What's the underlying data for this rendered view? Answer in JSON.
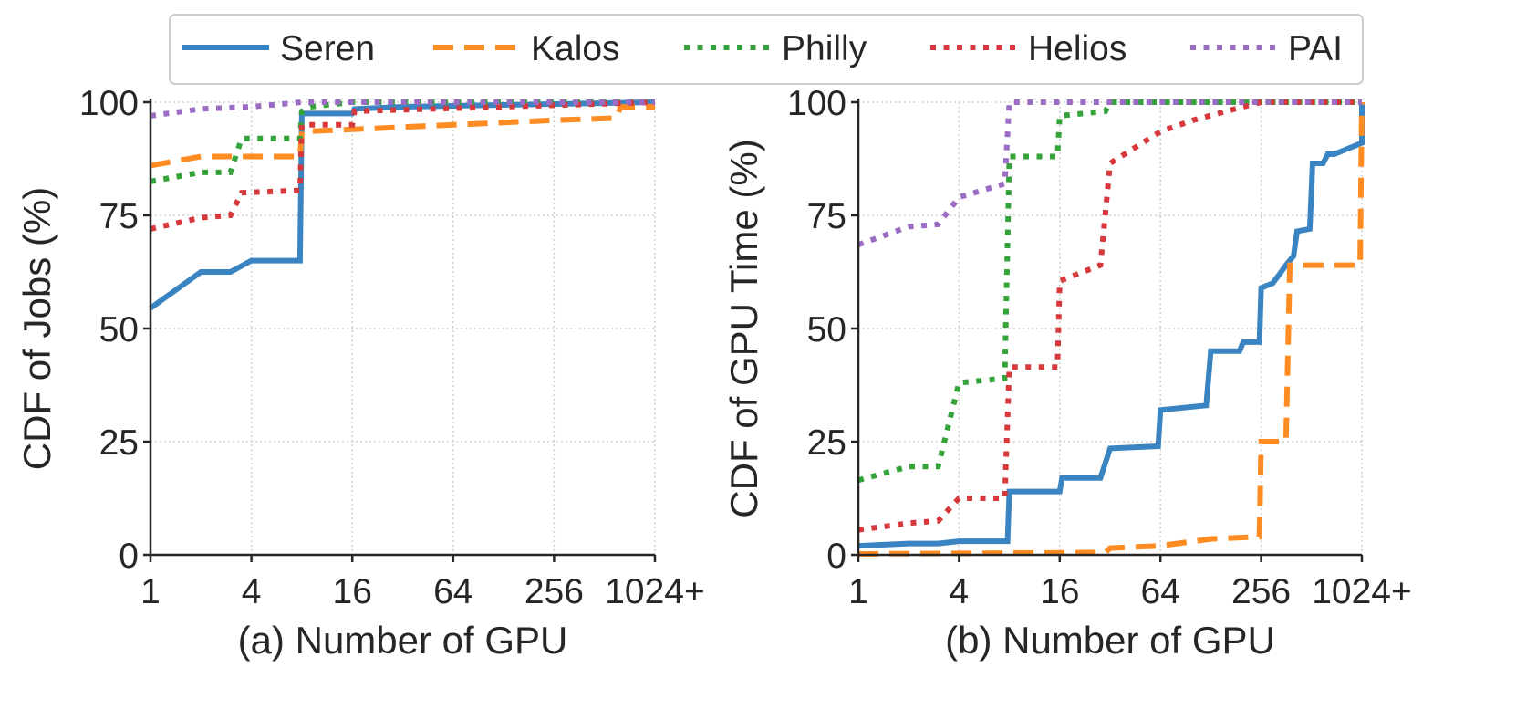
{
  "legend": {
    "placement": "top-center",
    "entries": [
      {
        "label": "Seren",
        "color": "#3a85c1",
        "dash": "solid"
      },
      {
        "label": "Kalos",
        "color": "#ff8c22",
        "dash": "dashed"
      },
      {
        "label": "Philly",
        "color": "#34a33a",
        "dash": "dotted"
      },
      {
        "label": "Helios",
        "color": "#d6383b",
        "dash": "dotted"
      },
      {
        "label": "PAI",
        "color": "#9a6cc4",
        "dash": "dotted"
      }
    ]
  },
  "chart_data": [
    {
      "type": "line",
      "xlabel": "(a) Number of GPU",
      "ylabel": "CDF of Jobs (%)",
      "x_scale": "log2",
      "x_ticks": [
        1,
        4,
        16,
        64,
        256,
        1024
      ],
      "x_tick_labels": [
        "1",
        "4",
        "16",
        "64",
        "256",
        "1024+"
      ],
      "xlim": [
        1,
        1024
      ],
      "y_ticks": [
        0,
        25,
        50,
        75,
        100
      ],
      "ylim": [
        0,
        100
      ],
      "grid": true,
      "series": [
        {
          "name": "Seren",
          "points": [
            [
              1,
              54.5
            ],
            [
              2,
              62.5
            ],
            [
              3,
              62.5
            ],
            [
              4,
              65
            ],
            [
              7.8,
              65
            ],
            [
              8,
              97.5
            ],
            [
              16,
              97.5
            ],
            [
              16.5,
              98.5
            ],
            [
              32,
              99
            ],
            [
              1024,
              100
            ]
          ]
        },
        {
          "name": "Kalos",
          "points": [
            [
              1,
              86
            ],
            [
              2,
              88
            ],
            [
              3,
              88
            ],
            [
              7.8,
              88
            ],
            [
              8,
              93.5
            ],
            [
              16,
              94
            ],
            [
              64,
              95
            ],
            [
              256,
              96
            ],
            [
              600,
              96.5
            ],
            [
              640,
              99
            ],
            [
              1024,
              99
            ]
          ]
        },
        {
          "name": "Philly",
          "points": [
            [
              1,
              82.5
            ],
            [
              2,
              84.5
            ],
            [
              3,
              84.5
            ],
            [
              3.5,
              92
            ],
            [
              7.8,
              92
            ],
            [
              8,
              98
            ],
            [
              9,
              99
            ],
            [
              16,
              100
            ],
            [
              1024,
              100
            ]
          ]
        },
        {
          "name": "Helios",
          "points": [
            [
              1,
              72
            ],
            [
              2,
              74.5
            ],
            [
              3,
              75
            ],
            [
              3.5,
              80
            ],
            [
              7.8,
              80.5
            ],
            [
              8,
              95
            ],
            [
              16,
              95
            ],
            [
              16.5,
              98
            ],
            [
              1024,
              100
            ]
          ]
        },
        {
          "name": "PAI",
          "points": [
            [
              1,
              97
            ],
            [
              2,
              98.5
            ],
            [
              4,
              99
            ],
            [
              8,
              100
            ],
            [
              1024,
              100
            ]
          ]
        }
      ]
    },
    {
      "type": "line",
      "xlabel": "(b) Number of GPU",
      "ylabel": "CDF of GPU Time (%)",
      "x_scale": "log2",
      "x_ticks": [
        1,
        4,
        16,
        64,
        256,
        1024
      ],
      "x_tick_labels": [
        "1",
        "4",
        "16",
        "64",
        "256",
        "1024+"
      ],
      "xlim": [
        1,
        1024
      ],
      "y_ticks": [
        0,
        25,
        50,
        75,
        100
      ],
      "ylim": [
        0,
        100
      ],
      "grid": true,
      "series": [
        {
          "name": "Seren",
          "points": [
            [
              1,
              2
            ],
            [
              2,
              2.5
            ],
            [
              3,
              2.5
            ],
            [
              4,
              3
            ],
            [
              7.8,
              3
            ],
            [
              8,
              14
            ],
            [
              16,
              14
            ],
            [
              16.5,
              17
            ],
            [
              28,
              17
            ],
            [
              32,
              23.5
            ],
            [
              62,
              24
            ],
            [
              64,
              32
            ],
            [
              120,
              33
            ],
            [
              128,
              45
            ],
            [
              190,
              45
            ],
            [
              200,
              47
            ],
            [
              250,
              47
            ],
            [
              256,
              59
            ],
            [
              300,
              60
            ],
            [
              330,
              62
            ],
            [
              360,
              64
            ],
            [
              400,
              66
            ],
            [
              420,
              71.5
            ],
            [
              500,
              72
            ],
            [
              520,
              86.5
            ],
            [
              600,
              86.5
            ],
            [
              640,
              88.5
            ],
            [
              700,
              88.5
            ],
            [
              1024,
              91
            ],
            [
              1024,
              100
            ]
          ]
        },
        {
          "name": "Kalos",
          "points": [
            [
              1,
              0.2
            ],
            [
              30,
              0.5
            ],
            [
              32,
              1.5
            ],
            [
              64,
              2
            ],
            [
              128,
              3.5
            ],
            [
              250,
              4
            ],
            [
              256,
              25
            ],
            [
              360,
              25
            ],
            [
              380,
              64
            ],
            [
              1000,
              64
            ],
            [
              1024,
              100
            ]
          ]
        },
        {
          "name": "Philly",
          "points": [
            [
              1,
              16.5
            ],
            [
              2,
              19.5
            ],
            [
              3,
              19.5
            ],
            [
              4,
              38
            ],
            [
              7.5,
              39
            ],
            [
              8,
              88
            ],
            [
              15.5,
              88
            ],
            [
              16,
              97
            ],
            [
              30,
              98
            ],
            [
              32,
              100
            ],
            [
              1024,
              100
            ]
          ]
        },
        {
          "name": "Helios",
          "points": [
            [
              1,
              5.5
            ],
            [
              2,
              7
            ],
            [
              3,
              7.5
            ],
            [
              4,
              12.5
            ],
            [
              7.5,
              12.5
            ],
            [
              8,
              41.5
            ],
            [
              15.5,
              41.5
            ],
            [
              16,
              60.5
            ],
            [
              28,
              64
            ],
            [
              32,
              86.5
            ],
            [
              64,
              93.5
            ],
            [
              100,
              96
            ],
            [
              200,
              99
            ],
            [
              256,
              100
            ],
            [
              1024,
              100
            ]
          ]
        },
        {
          "name": "PAI",
          "points": [
            [
              1,
              68.5
            ],
            [
              2,
              72.5
            ],
            [
              3,
              73
            ],
            [
              4,
              79
            ],
            [
              7.5,
              82
            ],
            [
              8,
              100
            ],
            [
              1024,
              100
            ]
          ]
        }
      ]
    }
  ]
}
